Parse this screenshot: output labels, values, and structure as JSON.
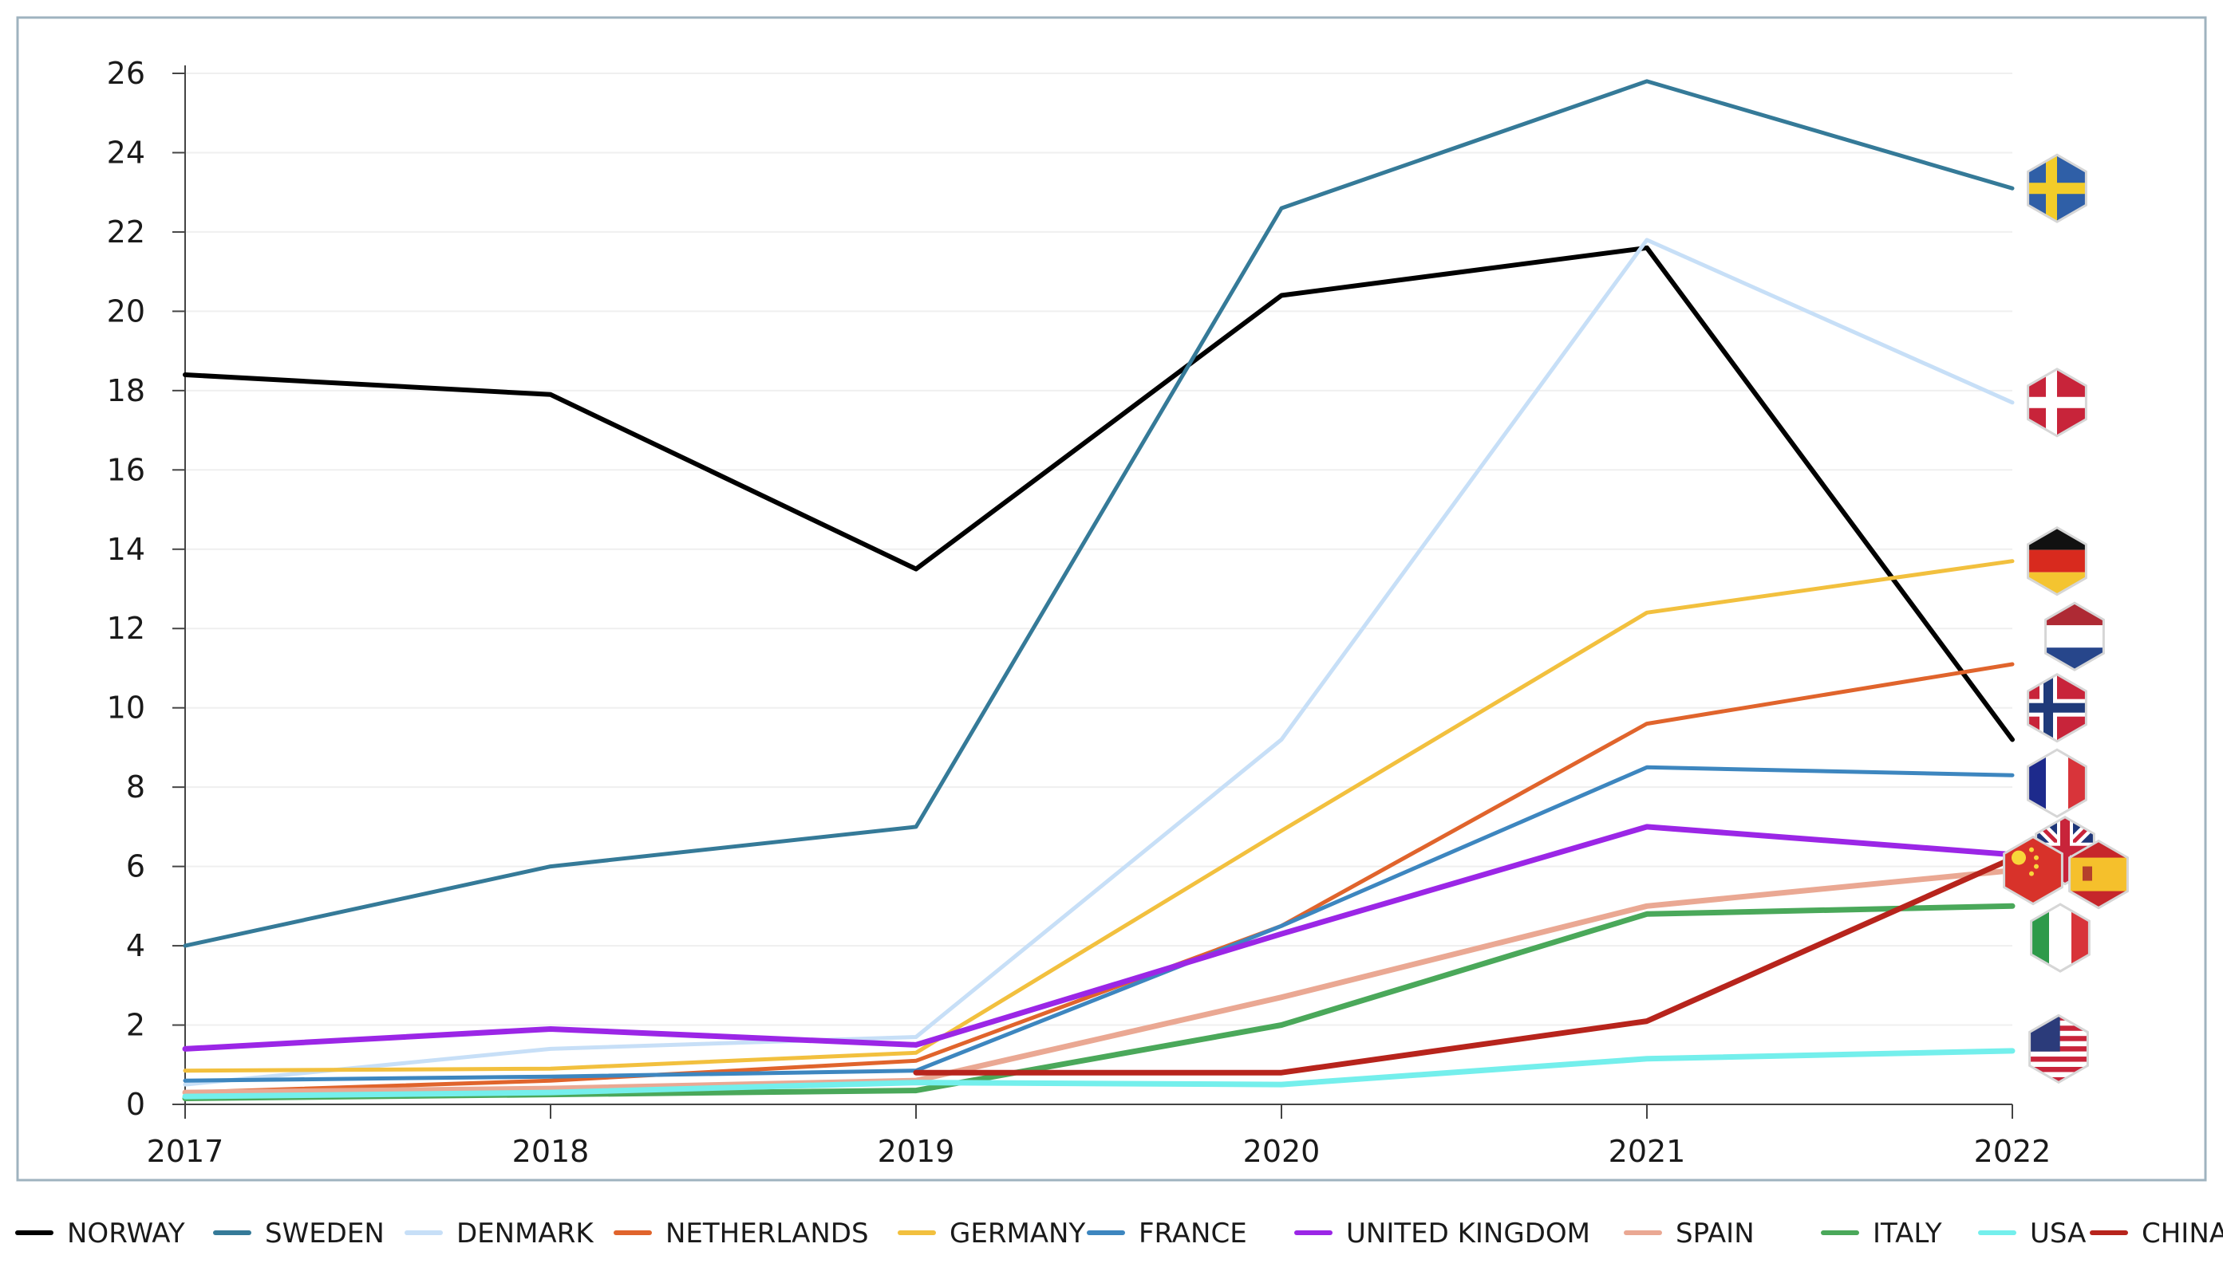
{
  "chart_data": {
    "type": "line",
    "title": "",
    "xlabel": "",
    "ylabel": "",
    "x": [
      "2017",
      "2018",
      "2019",
      "2020",
      "2021",
      "2022"
    ],
    "ylim": [
      0,
      26
    ],
    "yticks": [
      0,
      2,
      4,
      6,
      8,
      10,
      12,
      14,
      16,
      18,
      20,
      22,
      24,
      26
    ],
    "grid": "horizontal",
    "legend_position": "bottom",
    "series": [
      {
        "name": "NORWAY",
        "color": "#000000",
        "values": [
          18.4,
          17.9,
          13.5,
          20.4,
          21.6,
          9.2
        ]
      },
      {
        "name": "SWEDEN",
        "color": "#357a98",
        "values": [
          4.0,
          6.0,
          7.0,
          22.6,
          25.8,
          23.1
        ]
      },
      {
        "name": "DENMARK",
        "color": "#c7dff7",
        "values": [
          0.5,
          1.4,
          1.7,
          9.2,
          21.8,
          17.7
        ]
      },
      {
        "name": "NETHERLANDS",
        "color": "#e0642c",
        "values": [
          0.3,
          0.6,
          1.1,
          4.5,
          9.6,
          11.1
        ]
      },
      {
        "name": "GERMANY",
        "color": "#f2c03e",
        "values": [
          0.85,
          0.9,
          1.3,
          6.9,
          12.4,
          13.7
        ]
      },
      {
        "name": "FRANCE",
        "color": "#3d86bf",
        "values": [
          0.6,
          0.7,
          0.85,
          4.5,
          8.5,
          8.3
        ]
      },
      {
        "name": "UNITED KINGDOM",
        "color": "#9b26e6",
        "values": [
          1.4,
          1.9,
          1.5,
          4.3,
          7.0,
          6.3
        ]
      },
      {
        "name": "SPAIN",
        "color": "#eaa893",
        "values": [
          0.3,
          0.4,
          0.6,
          2.7,
          5.0,
          5.9
        ]
      },
      {
        "name": "ITALY",
        "color": "#4aa85a",
        "values": [
          0.15,
          0.25,
          0.35,
          2.0,
          4.8,
          5.0
        ]
      },
      {
        "name": "USA",
        "color": "#74efec",
        "values": [
          0.2,
          0.3,
          0.55,
          0.5,
          1.15,
          1.35
        ]
      },
      {
        "name": "CHINA",
        "color": "#b7241c",
        "values": [
          null,
          null,
          0.8,
          0.8,
          2.1,
          6.2
        ]
      }
    ],
    "flag_icons": [
      {
        "name": "sweden-flag-icon",
        "value": 23.1
      },
      {
        "name": "denmark-flag-icon",
        "value": 17.7
      },
      {
        "name": "germany-flag-icon",
        "value": 13.7
      },
      {
        "name": "netherlands-flag-icon",
        "value": 11.8
      },
      {
        "name": "norway-flag-icon",
        "value": 10.0
      },
      {
        "name": "france-flag-icon",
        "value": 8.1
      },
      {
        "name": "uk-flag-icon",
        "value": 6.4
      },
      {
        "name": "china-flag-icon",
        "value": 5.9
      },
      {
        "name": "spain-flag-icon",
        "value": 5.8
      },
      {
        "name": "italy-flag-icon",
        "value": 4.2
      },
      {
        "name": "usa-flag-icon",
        "value": 1.4
      }
    ]
  }
}
